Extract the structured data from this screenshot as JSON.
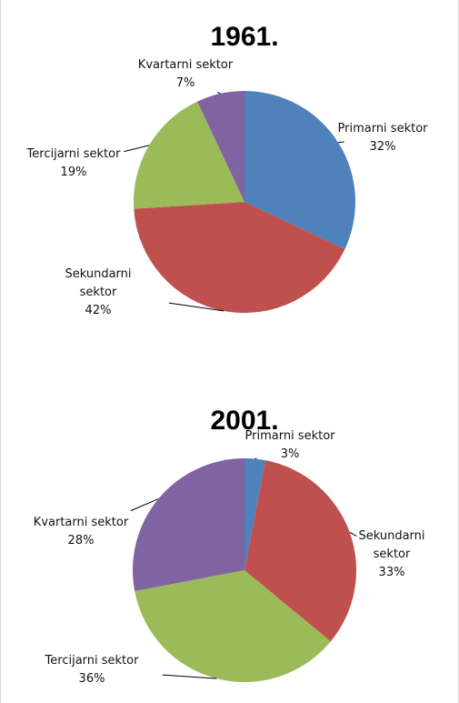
{
  "chart_data": [
    {
      "type": "pie",
      "title": "1961.",
      "categories": [
        "Primarni sektor",
        "Sekundarni sektor",
        "Tercijarni sektor",
        "Kvartarni sektor"
      ],
      "values": [
        32,
        42,
        19,
        7
      ],
      "value_labels": [
        "32%",
        "42%",
        "19%",
        "7%"
      ],
      "colors": [
        "#4f81bd",
        "#c0504d",
        "#9bbb59",
        "#8064a2"
      ]
    },
    {
      "type": "pie",
      "title": "2001.",
      "categories": [
        "Primarni sektor",
        "Sekundarni sektor",
        "Tercijarni sektor",
        "Kvartarni sektor"
      ],
      "values": [
        3,
        33,
        36,
        28
      ],
      "value_labels": [
        "3%",
        "33%",
        "36%",
        "28%"
      ],
      "colors": [
        "#4f81bd",
        "#c0504d",
        "#9bbb59",
        "#8064a2"
      ]
    }
  ]
}
